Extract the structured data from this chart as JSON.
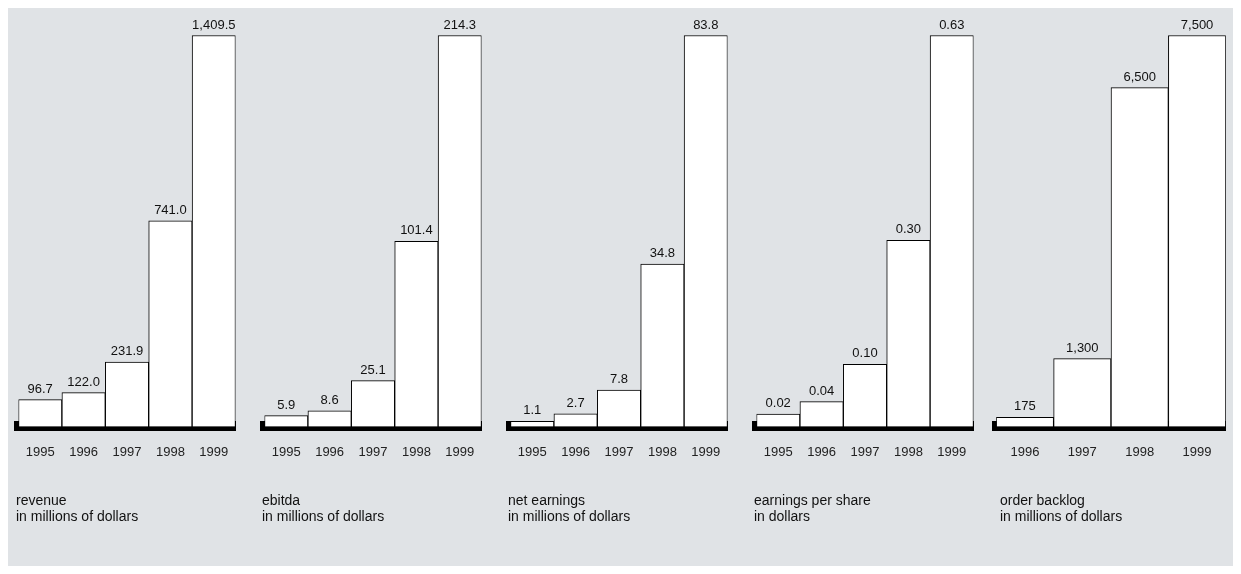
{
  "chart_data": [
    {
      "type": "bar",
      "title": "revenue",
      "subtitle": "in millions of dollars",
      "categories": [
        "1995",
        "1996",
        "1997",
        "1998",
        "1999"
      ],
      "values": [
        96.7,
        122.0,
        231.9,
        741.0,
        1409.5
      ],
      "value_labels": [
        "96.7",
        "122.0",
        "231.9",
        "741.0",
        "1,409.5"
      ],
      "color": "#ffffff",
      "grid": false,
      "legend": false
    },
    {
      "type": "bar",
      "title": "ebitda",
      "subtitle": "in millions of dollars",
      "categories": [
        "1995",
        "1996",
        "1997",
        "1998",
        "1999"
      ],
      "values": [
        5.9,
        8.6,
        25.1,
        101.4,
        214.3
      ],
      "value_labels": [
        "5.9",
        "8.6",
        "25.1",
        "101.4",
        "214.3"
      ],
      "color": "#ffffff",
      "grid": false,
      "legend": false
    },
    {
      "type": "bar",
      "title": "net earnings",
      "subtitle": "in millions of dollars",
      "categories": [
        "1995",
        "1996",
        "1997",
        "1998",
        "1999"
      ],
      "values": [
        1.1,
        2.7,
        7.8,
        34.8,
        83.8
      ],
      "value_labels": [
        "1.1",
        "2.7",
        "7.8",
        "34.8",
        "83.8"
      ],
      "color": "#ffffff",
      "grid": false,
      "legend": false
    },
    {
      "type": "bar",
      "title": "earnings per share",
      "subtitle": "in dollars",
      "categories": [
        "1995",
        "1996",
        "1997",
        "1998",
        "1999"
      ],
      "values": [
        0.02,
        0.04,
        0.1,
        0.3,
        0.63
      ],
      "value_labels": [
        "0.02",
        "0.04",
        "0.10",
        "0.30",
        "0.63"
      ],
      "color": "#ffffff",
      "grid": false,
      "legend": false
    },
    {
      "type": "bar",
      "title": "order backlog",
      "subtitle": "in millions of dollars",
      "categories": [
        "1996",
        "1997",
        "1998",
        "1999"
      ],
      "values": [
        175,
        1300,
        6500,
        7500
      ],
      "value_labels": [
        "175",
        "1,300",
        "6,500",
        "7,500"
      ],
      "color": "#ffffff",
      "grid": false,
      "legend": false
    }
  ]
}
